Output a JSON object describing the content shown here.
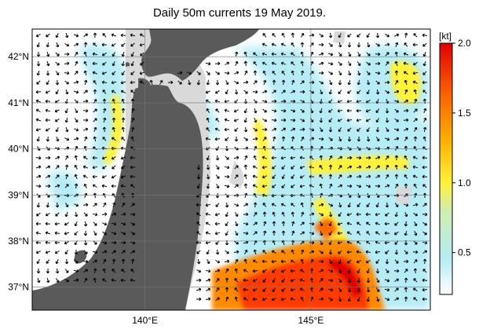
{
  "title": "Daily 50m currents 19 May 2019.",
  "map": {
    "lon_range": [
      136.6,
      148.6
    ],
    "lat_range": [
      36.5,
      42.6
    ],
    "lat_ticks": [
      {
        "value": 42,
        "label": "42°N"
      },
      {
        "value": 41,
        "label": "41°N"
      },
      {
        "value": 40,
        "label": "40°N"
      },
      {
        "value": 39,
        "label": "39°N"
      },
      {
        "value": 38,
        "label": "38°N"
      },
      {
        "value": 37,
        "label": "37°N"
      }
    ],
    "lon_ticks": [
      {
        "value": 140,
        "label": "140°E"
      },
      {
        "value": 145,
        "label": "145°E"
      }
    ],
    "colors": {
      "land": "#5a5a5a",
      "shelf": "#d9d9d9",
      "arrow": "#000000"
    }
  },
  "colorbar": {
    "unit_label": "[kt]",
    "min": 0.2,
    "max": 2.0,
    "ticks": [
      {
        "value": 2.0,
        "label": "2.0"
      },
      {
        "value": 1.5,
        "label": "1.5"
      },
      {
        "value": 1.0,
        "label": "1.0"
      },
      {
        "value": 0.5,
        "label": "0.5"
      }
    ],
    "stops": [
      {
        "value": 0.2,
        "color": "#ffffff"
      },
      {
        "value": 0.45,
        "color": "#b6ecf6"
      },
      {
        "value": 0.8,
        "color": "#cfeeb0"
      },
      {
        "value": 1.0,
        "color": "#fff23a"
      },
      {
        "value": 1.3,
        "color": "#ffb000"
      },
      {
        "value": 1.6,
        "color": "#ff6a00"
      },
      {
        "value": 2.0,
        "color": "#e00000"
      }
    ]
  }
}
